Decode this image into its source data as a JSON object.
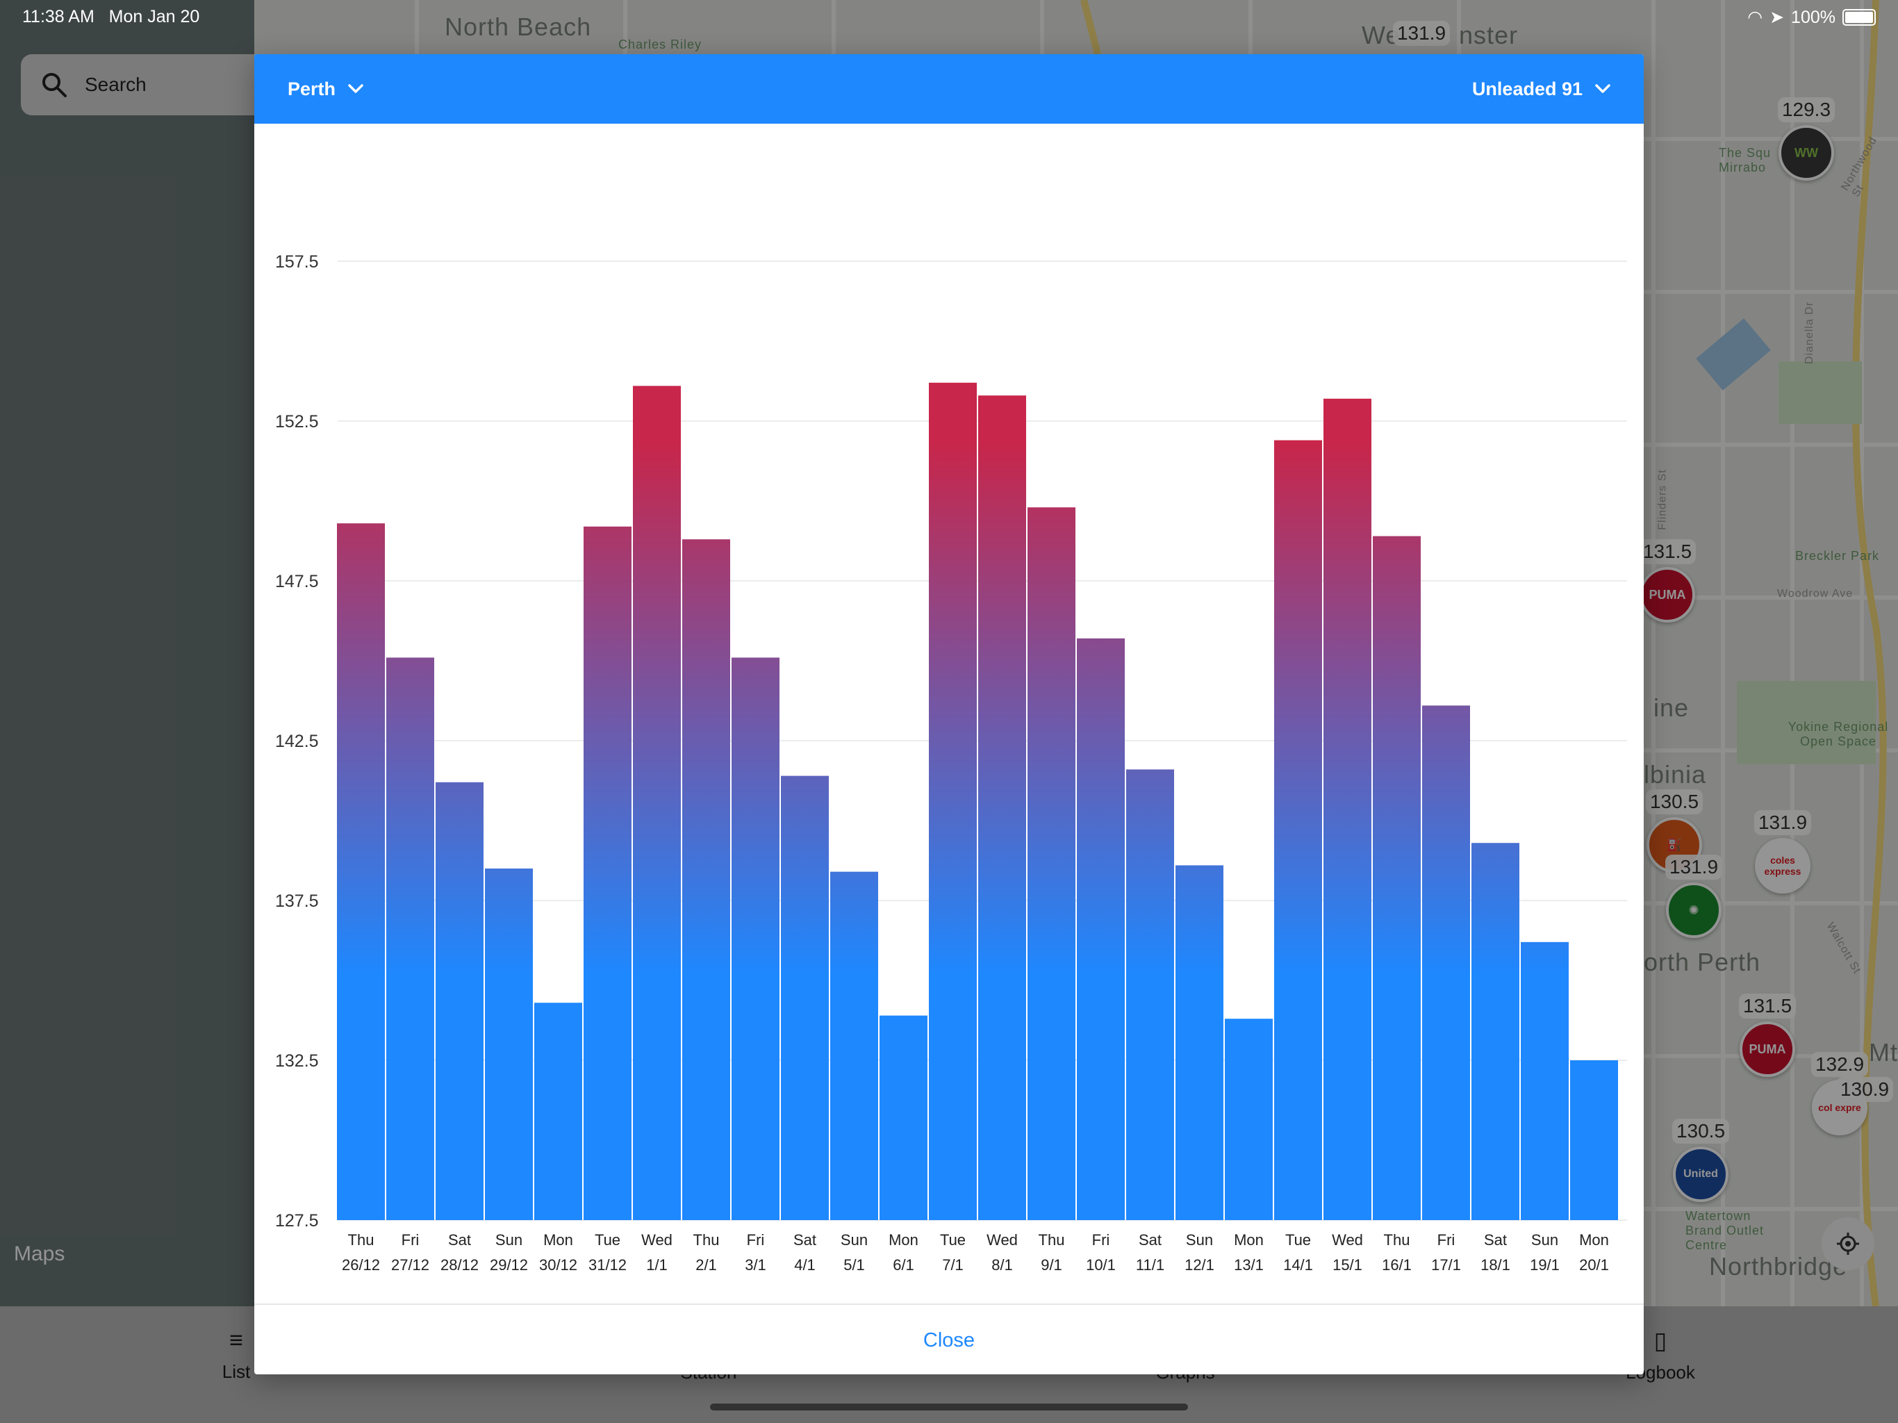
{
  "status_bar": {
    "time": "11:38 AM",
    "date": "Mon Jan 20",
    "battery": "100%"
  },
  "search": {
    "label": "Search"
  },
  "maps_attribution": "Maps",
  "map": {
    "labels": [
      "North Beach",
      "Charles Riley",
      "We",
      "nster",
      "The Squ Mirrabo",
      "Breckler Park",
      "Woodrow Ave",
      "Yokine Regional Open Space",
      "lbinia",
      "ine",
      "orth Perth",
      "Northbridge",
      "Watertown Brand Outlet Centre",
      "Northwood St",
      "Dianella Dr",
      "Flinders St",
      "Walcott St",
      "Mt"
    ],
    "pins": [
      {
        "price": "131.9",
        "brand": ""
      },
      {
        "price": "129.3",
        "brand": "WW"
      },
      {
        "price": "131.5",
        "brand": "PUMA"
      },
      {
        "price": "130.5",
        "brand": ""
      },
      {
        "price": "131.9",
        "brand": "coles express"
      },
      {
        "price": "131.9",
        "brand": ""
      },
      {
        "price": "131.5",
        "brand": "PUMA"
      },
      {
        "price": "132.9",
        "brand": "col expre"
      },
      {
        "price": "130.9",
        "brand": ""
      },
      {
        "price": "130.5",
        "brand": "United"
      }
    ]
  },
  "tabbar": {
    "tabs": [
      {
        "label": "List",
        "icon": "list-icon"
      },
      {
        "label": "Station",
        "icon": "station-icon"
      },
      {
        "label": "Graphs",
        "icon": "graphs-icon"
      },
      {
        "label": "Logbook",
        "icon": "logbook-icon"
      }
    ]
  },
  "modal": {
    "region": "Perth",
    "fuel_type": "Unleaded 91",
    "close_label": "Close",
    "colors": {
      "header": "#1e88ff",
      "bar_bottom": "#1e88ff",
      "bar_top": "#c8264a"
    }
  },
  "chart_data": {
    "type": "bar",
    "ylim": [
      127.5,
      160
    ],
    "yticks": [
      "157.5",
      "152.5",
      "147.5",
      "142.5",
      "137.5",
      "132.5",
      "127.5"
    ],
    "categories": [
      {
        "day": "Thu",
        "date": "26/12"
      },
      {
        "day": "Fri",
        "date": "27/12"
      },
      {
        "day": "Sat",
        "date": "28/12"
      },
      {
        "day": "Sun",
        "date": "29/12"
      },
      {
        "day": "Mon",
        "date": "30/12"
      },
      {
        "day": "Tue",
        "date": "31/12"
      },
      {
        "day": "Wed",
        "date": "1/1"
      },
      {
        "day": "Thu",
        "date": "2/1"
      },
      {
        "day": "Fri",
        "date": "3/1"
      },
      {
        "day": "Sat",
        "date": "4/1"
      },
      {
        "day": "Sun",
        "date": "5/1"
      },
      {
        "day": "Mon",
        "date": "6/1"
      },
      {
        "day": "Tue",
        "date": "7/1"
      },
      {
        "day": "Wed",
        "date": "8/1"
      },
      {
        "day": "Thu",
        "date": "9/1"
      },
      {
        "day": "Fri",
        "date": "10/1"
      },
      {
        "day": "Sat",
        "date": "11/1"
      },
      {
        "day": "Sun",
        "date": "12/1"
      },
      {
        "day": "Mon",
        "date": "13/1"
      },
      {
        "day": "Tue",
        "date": "14/1"
      },
      {
        "day": "Wed",
        "date": "15/1"
      },
      {
        "day": "Thu",
        "date": "16/1"
      },
      {
        "day": "Fri",
        "date": "17/1"
      },
      {
        "day": "Sat",
        "date": "18/1"
      },
      {
        "day": "Sun",
        "date": "19/1"
      },
      {
        "day": "Mon",
        "date": "20/1"
      }
    ],
    "values": [
      149.3,
      145.1,
      141.2,
      138.5,
      134.3,
      149.2,
      153.6,
      148.8,
      145.1,
      141.4,
      138.4,
      133.9,
      153.7,
      153.3,
      149.8,
      145.7,
      141.6,
      138.6,
      133.8,
      151.9,
      153.2,
      148.9,
      143.6,
      139.3,
      136.2,
      132.5
    ],
    "grid": true,
    "legend": "none"
  }
}
